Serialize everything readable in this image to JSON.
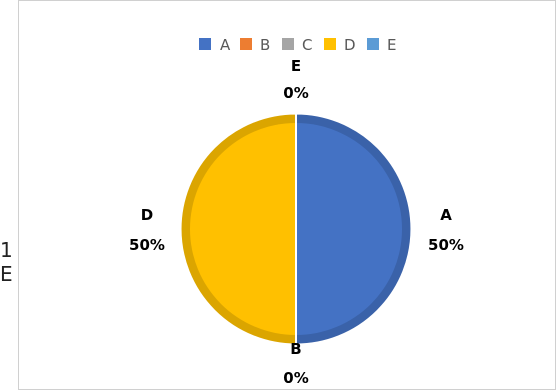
{
  "page_edge_text": [
    "1",
    "E"
  ],
  "chart_data": {
    "type": "pie",
    "title": "",
    "categories": [
      "A",
      "B",
      "C",
      "D",
      "E"
    ],
    "values": [
      50,
      0,
      0,
      50,
      0
    ],
    "labels": [
      {
        "name": "A",
        "value": "50%"
      },
      {
        "name": "B",
        "value": "0%"
      },
      {
        "name": "C",
        "value": ""
      },
      {
        "name": "D",
        "value": "50%"
      },
      {
        "name": "E",
        "value": "0%"
      }
    ],
    "colors": [
      "#4472C4",
      "#ED7D31",
      "#A5A5A5",
      "#FFC000",
      "#5B9BD5"
    ],
    "legend": "top",
    "legend_entries": [
      "A",
      "B",
      "C",
      "D",
      "E"
    ]
  }
}
